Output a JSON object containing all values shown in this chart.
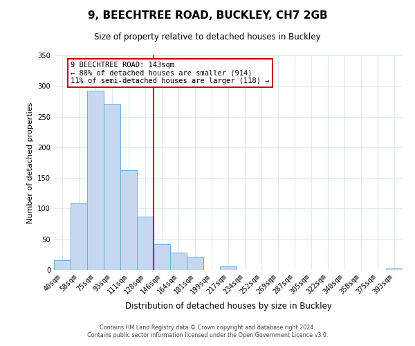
{
  "title": "9, BEECHTREE ROAD, BUCKLEY, CH7 2GB",
  "subtitle": "Size of property relative to detached houses in Buckley",
  "xlabel": "Distribution of detached houses by size in Buckley",
  "ylabel": "Number of detached properties",
  "bar_labels": [
    "40sqm",
    "58sqm",
    "75sqm",
    "93sqm",
    "111sqm",
    "128sqm",
    "146sqm",
    "164sqm",
    "181sqm",
    "199sqm",
    "217sqm",
    "234sqm",
    "252sqm",
    "269sqm",
    "287sqm",
    "305sqm",
    "322sqm",
    "340sqm",
    "358sqm",
    "375sqm",
    "393sqm"
  ],
  "bar_values": [
    16,
    109,
    292,
    271,
    163,
    87,
    42,
    28,
    21,
    0,
    6,
    0,
    0,
    0,
    0,
    0,
    0,
    0,
    0,
    0,
    2
  ],
  "bar_color": "#c5d8f0",
  "bar_edge_color": "#6aaed6",
  "vline_index": 6,
  "vline_color": "#cc0000",
  "annotation_title": "9 BEECHTREE ROAD: 143sqm",
  "annotation_line1": "← 88% of detached houses are smaller (914)",
  "annotation_line2": "11% of semi-detached houses are larger (118) →",
  "annotation_box_color": "#ffffff",
  "annotation_box_edge": "#cc0000",
  "ylim": [
    0,
    350
  ],
  "yticks": [
    0,
    50,
    100,
    150,
    200,
    250,
    300,
    350
  ],
  "footer1": "Contains HM Land Registry data © Crown copyright and database right 2024.",
  "footer2": "Contains public sector information licensed under the Open Government Licence v3.0.",
  "background_color": "#ffffff",
  "grid_color": "#dde8f0"
}
